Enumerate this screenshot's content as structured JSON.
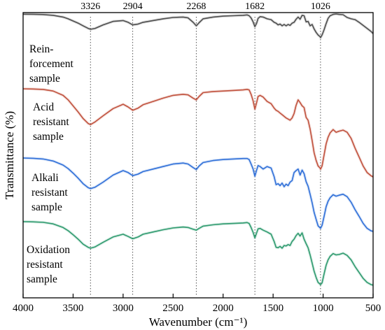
{
  "chart_data": {
    "type": "line",
    "xlabel": "Wavenumber (cm⁻¹)",
    "ylabel": "Transmittance (%)",
    "xlim": [
      4000,
      500
    ],
    "x_reversed": true,
    "x_ticks": [
      4000,
      3500,
      3000,
      2500,
      2000,
      1500,
      1000,
      500
    ],
    "y_ticks": [],
    "grid": false,
    "legend": "none",
    "peak_markers": [
      {
        "x": 3326,
        "label": "3326"
      },
      {
        "x": 2904,
        "label": "2904"
      },
      {
        "x": 2268,
        "label": "2268"
      },
      {
        "x": 1682,
        "label": "1682"
      },
      {
        "x": 1026,
        "label": "1026"
      }
    ],
    "series": [
      {
        "name": "Rein-forcement sample",
        "label_lines": [
          "Rein-",
          "forcement",
          "sample"
        ],
        "color": "#4d4d4d",
        "x": [
          4000,
          3900,
          3800,
          3700,
          3600,
          3550,
          3500,
          3450,
          3400,
          3350,
          3326,
          3280,
          3200,
          3100,
          3000,
          2950,
          2904,
          2850,
          2800,
          2700,
          2600,
          2500,
          2400,
          2350,
          2300,
          2268,
          2240,
          2200,
          2100,
          2000,
          1900,
          1800,
          1760,
          1740,
          1720,
          1700,
          1682,
          1665,
          1650,
          1630,
          1600,
          1560,
          1520,
          1490,
          1470,
          1450,
          1430,
          1410,
          1390,
          1370,
          1350,
          1330,
          1310,
          1290,
          1270,
          1250,
          1230,
          1210,
          1190,
          1170,
          1150,
          1130,
          1110,
          1090,
          1070,
          1050,
          1030,
          1026,
          1010,
          990,
          970,
          950,
          930,
          900,
          870,
          840,
          800,
          760,
          720,
          680,
          640,
          600,
          560,
          520,
          500
        ],
        "y": [
          0.2,
          0.3,
          0.6,
          1.5,
          3.5,
          5.5,
          8.0,
          10.5,
          13.5,
          16.5,
          17.5,
          16.5,
          12.5,
          8.5,
          7.5,
          9.5,
          12.5,
          11.5,
          9.5,
          7.5,
          5.5,
          4.0,
          3.5,
          4.5,
          9.5,
          13.5,
          10.0,
          5.5,
          3.5,
          2.5,
          2.0,
          1.5,
          1.0,
          2.0,
          4.5,
          9.0,
          14.5,
          10.5,
          5.0,
          3.0,
          3.5,
          5.5,
          6.5,
          9.5,
          10.5,
          12.5,
          11.5,
          13.5,
          12.0,
          13.5,
          12.0,
          13.0,
          10.5,
          9.5,
          6.0,
          3.5,
          6.0,
          1.5,
          2.0,
          9.0,
          8.5,
          13.5,
          12.0,
          17.0,
          21.0,
          24.0,
          26.0,
          27.0,
          24.0,
          18.0,
          11.0,
          5.0,
          2.0,
          0.5,
          0.0,
          0.5,
          0.8,
          4.0,
          5.5,
          6.5,
          9.5,
          13.0,
          16.5,
          20.0,
          22.5
        ]
      },
      {
        "name": "Acid resistant sample",
        "label_lines": [
          "Acid",
          "resistant",
          "sample"
        ],
        "color": "#c0513d",
        "x": [
          4000,
          3900,
          3800,
          3700,
          3600,
          3550,
          3500,
          3450,
          3400,
          3350,
          3326,
          3280,
          3200,
          3100,
          3000,
          2950,
          2904,
          2850,
          2800,
          2700,
          2600,
          2500,
          2400,
          2350,
          2300,
          2268,
          2240,
          2200,
          2100,
          2000,
          1900,
          1800,
          1760,
          1740,
          1720,
          1700,
          1682,
          1665,
          1650,
          1630,
          1600,
          1560,
          1520,
          1490,
          1470,
          1450,
          1430,
          1410,
          1390,
          1370,
          1350,
          1330,
          1310,
          1290,
          1270,
          1250,
          1230,
          1210,
          1190,
          1170,
          1150,
          1130,
          1110,
          1090,
          1070,
          1050,
          1030,
          1026,
          1010,
          990,
          970,
          950,
          930,
          900,
          870,
          840,
          800,
          760,
          720,
          680,
          640,
          600,
          560,
          520,
          500
        ],
        "y": [
          0.0,
          0.2,
          0.6,
          2.0,
          6.0,
          10.0,
          15.5,
          21.0,
          27.0,
          31.5,
          32.5,
          30.0,
          24.5,
          18.0,
          14.0,
          16.5,
          19.5,
          17.5,
          14.5,
          11.5,
          8.5,
          6.0,
          5.0,
          5.5,
          8.5,
          10.0,
          7.0,
          3.5,
          2.5,
          2.0,
          1.5,
          1.0,
          0.5,
          1.0,
          5.0,
          11.0,
          18.5,
          12.5,
          7.0,
          6.0,
          7.5,
          11.5,
          13.5,
          17.5,
          19.5,
          20.5,
          22.0,
          23.5,
          25.0,
          26.5,
          27.5,
          28.5,
          26.5,
          22.5,
          15.0,
          10.0,
          12.5,
          15.5,
          17.0,
          26.0,
          28.5,
          36.5,
          47.0,
          58.0,
          65.0,
          70.0,
          72.0,
          73.0,
          70.0,
          60.0,
          50.0,
          44.0,
          40.0,
          37.0,
          39.5,
          38.5,
          37.5,
          39.5,
          45.0,
          54.0,
          62.0,
          70.0,
          76.0,
          79.0,
          80.0
        ]
      },
      {
        "name": "Alkali resistant sample",
        "label_lines": [
          "Alkali",
          "resistant",
          "sample"
        ],
        "color": "#2f6fd8",
        "x": [
          4000,
          3900,
          3800,
          3700,
          3600,
          3550,
          3500,
          3450,
          3400,
          3350,
          3326,
          3280,
          3200,
          3100,
          3000,
          2950,
          2904,
          2850,
          2800,
          2700,
          2600,
          2500,
          2400,
          2350,
          2300,
          2268,
          2240,
          2200,
          2100,
          2000,
          1900,
          1800,
          1760,
          1740,
          1720,
          1700,
          1682,
          1665,
          1650,
          1630,
          1600,
          1560,
          1520,
          1490,
          1470,
          1450,
          1430,
          1410,
          1390,
          1370,
          1350,
          1330,
          1310,
          1290,
          1270,
          1250,
          1230,
          1210,
          1190,
          1170,
          1150,
          1130,
          1110,
          1090,
          1070,
          1050,
          1030,
          1026,
          1010,
          990,
          970,
          950,
          930,
          900,
          870,
          840,
          800,
          760,
          720,
          680,
          640,
          600,
          560,
          520,
          500
        ],
        "y": [
          0.0,
          0.3,
          1.0,
          3.0,
          7.0,
          10.5,
          15.0,
          20.0,
          25.5,
          29.5,
          30.5,
          29.0,
          24.0,
          17.0,
          12.5,
          14.5,
          17.5,
          16.0,
          13.5,
          11.0,
          8.5,
          6.0,
          5.0,
          6.0,
          9.5,
          11.5,
          8.0,
          4.5,
          2.5,
          1.5,
          1.0,
          0.5,
          0.5,
          1.5,
          6.0,
          11.0,
          18.0,
          12.0,
          7.5,
          8.5,
          11.0,
          8.5,
          10.0,
          18.5,
          26.5,
          25.5,
          27.5,
          25.0,
          28.5,
          26.0,
          27.5,
          24.0,
          22.5,
          14.5,
          12.5,
          11.0,
          17.0,
          12.0,
          15.5,
          23.5,
          28.0,
          36.0,
          44.5,
          54.0,
          61.0,
          67.5,
          69.5,
          70.0,
          67.0,
          58.0,
          48.5,
          43.0,
          39.5,
          36.5,
          38.0,
          37.0,
          36.0,
          38.5,
          44.0,
          51.5,
          58.0,
          65.0,
          70.0,
          72.5,
          73.0
        ]
      },
      {
        "name": "Oxidation resistant sample",
        "label_lines": [
          "Oxidation",
          "resistant",
          "sample"
        ],
        "color": "#2e9a6e",
        "x": [
          4000,
          3900,
          3800,
          3700,
          3600,
          3550,
          3500,
          3450,
          3400,
          3350,
          3326,
          3280,
          3200,
          3100,
          3000,
          2950,
          2904,
          2850,
          2800,
          2700,
          2600,
          2500,
          2400,
          2350,
          2300,
          2268,
          2240,
          2200,
          2100,
          2000,
          1900,
          1800,
          1760,
          1740,
          1720,
          1700,
          1682,
          1665,
          1650,
          1630,
          1600,
          1560,
          1520,
          1490,
          1470,
          1450,
          1430,
          1410,
          1390,
          1370,
          1350,
          1330,
          1310,
          1290,
          1270,
          1250,
          1230,
          1210,
          1190,
          1170,
          1150,
          1130,
          1110,
          1090,
          1070,
          1050,
          1030,
          1026,
          1010,
          990,
          970,
          950,
          930,
          900,
          870,
          840,
          800,
          760,
          720,
          680,
          640,
          600,
          560,
          520,
          500
        ],
        "y": [
          0.0,
          0.2,
          0.8,
          2.5,
          6.5,
          10.0,
          14.5,
          19.5,
          25.0,
          28.5,
          29.5,
          28.0,
          23.0,
          17.0,
          14.0,
          16.5,
          19.0,
          17.0,
          14.0,
          11.5,
          9.0,
          7.0,
          6.0,
          6.5,
          8.5,
          9.5,
          7.5,
          5.0,
          3.5,
          2.5,
          2.0,
          1.5,
          1.0,
          2.0,
          6.5,
          12.0,
          18.0,
          12.5,
          8.0,
          7.5,
          9.5,
          11.5,
          14.0,
          22.0,
          28.5,
          29.0,
          27.5,
          29.5,
          26.5,
          27.0,
          25.5,
          26.5,
          22.0,
          19.5,
          15.5,
          13.0,
          16.0,
          12.5,
          19.5,
          24.5,
          29.0,
          37.0,
          46.0,
          55.0,
          62.0,
          67.5,
          69.5,
          70.0,
          68.0,
          58.0,
          48.5,
          42.5,
          38.5,
          35.5,
          37.0,
          36.5,
          35.0,
          37.5,
          42.5,
          50.0,
          56.5,
          63.0,
          67.5,
          70.0,
          70.5
        ]
      }
    ]
  }
}
